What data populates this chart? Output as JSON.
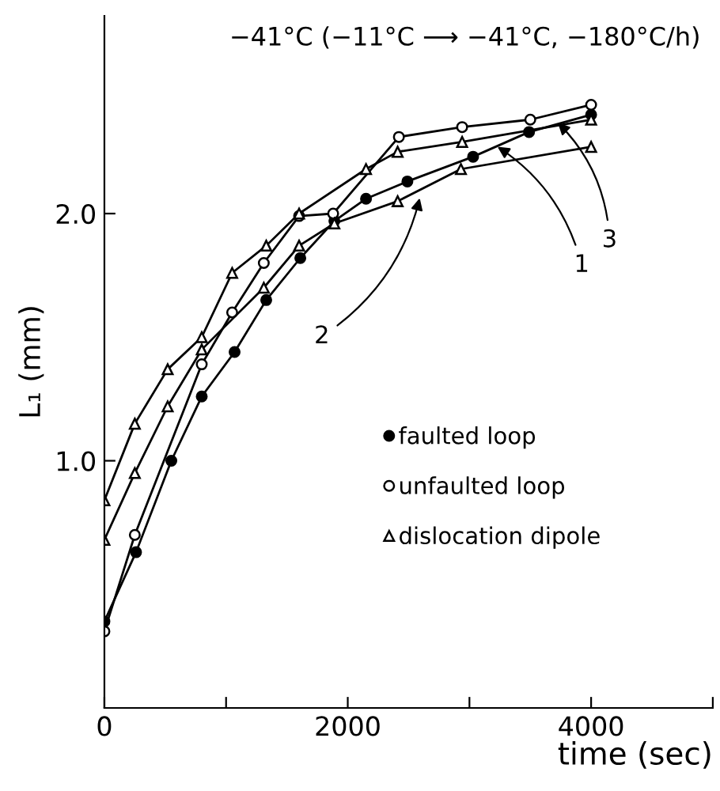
{
  "chart_data": {
    "type": "line",
    "title": "−41°C (−11°C ⟶ −41°C, −180°C/h)",
    "xlabel": "time (sec)",
    "ylabel": "L₁ (mm)",
    "xlim": [
      0,
      5000
    ],
    "ylim": [
      0,
      2.8
    ],
    "xticks": [
      0,
      {
        "value": 1000,
        "label": null
      },
      2000,
      {
        "value": 3000,
        "label": null
      },
      4000,
      {
        "value": 5000,
        "label": null
      }
    ],
    "yticks": [
      {
        "value": 1,
        "label": "1.0"
      },
      {
        "value": 2,
        "label": "2.0"
      }
    ],
    "grid": false,
    "legend": "bottom right",
    "line_style": "solid",
    "series": [
      {
        "name": "faulted loop",
        "color": "#000000",
        "marker": "circle",
        "x": [
          0,
          260,
          550,
          800,
          1070,
          1330,
          1610,
          1890,
          2150,
          2490,
          3030,
          3490,
          4000
        ],
        "values": [
          0.35,
          0.63,
          1.0,
          1.26,
          1.44,
          1.65,
          1.82,
          1.97,
          2.06,
          2.13,
          2.23,
          2.33,
          2.4
        ]
      },
      {
        "name": "unfaulted loop",
        "color": "#ffffff",
        "marker": "circle",
        "x": [
          0,
          250,
          800,
          1050,
          1310,
          1600,
          1880,
          2420,
          2940,
          3500,
          4000
        ],
        "values": [
          0.31,
          0.7,
          1.39,
          1.6,
          1.8,
          1.99,
          2.0,
          2.31,
          2.35,
          2.38,
          2.44
        ]
      },
      {
        "name": "dislocation dipole",
        "color": "#ffffff",
        "marker": "triangle",
        "x": [
          0,
          250,
          520,
          800,
          1050,
          1330,
          1600,
          2150,
          2410,
          2940,
          4000
        ],
        "values": [
          0.84,
          1.15,
          1.37,
          1.5,
          1.76,
          1.87,
          2.0,
          2.18,
          2.25,
          2.29,
          2.38
        ]
      },
      {
        "color": "#ffffff",
        "marker": "triangle",
        "x": [
          0,
          250,
          520,
          800,
          1310,
          1600,
          1890,
          2410,
          2930,
          4000
        ],
        "values": [
          0.68,
          0.95,
          1.22,
          1.45,
          1.7,
          1.87,
          1.96,
          2.05,
          2.18,
          2.27
        ]
      }
    ],
    "annotations": [
      {
        "text": "1",
        "x": 3200,
        "y": 2.28
      },
      {
        "text": "2",
        "x": 2600,
        "y": 2.08
      },
      {
        "text": "3",
        "x": 3700,
        "y": 2.38
      }
    ]
  }
}
